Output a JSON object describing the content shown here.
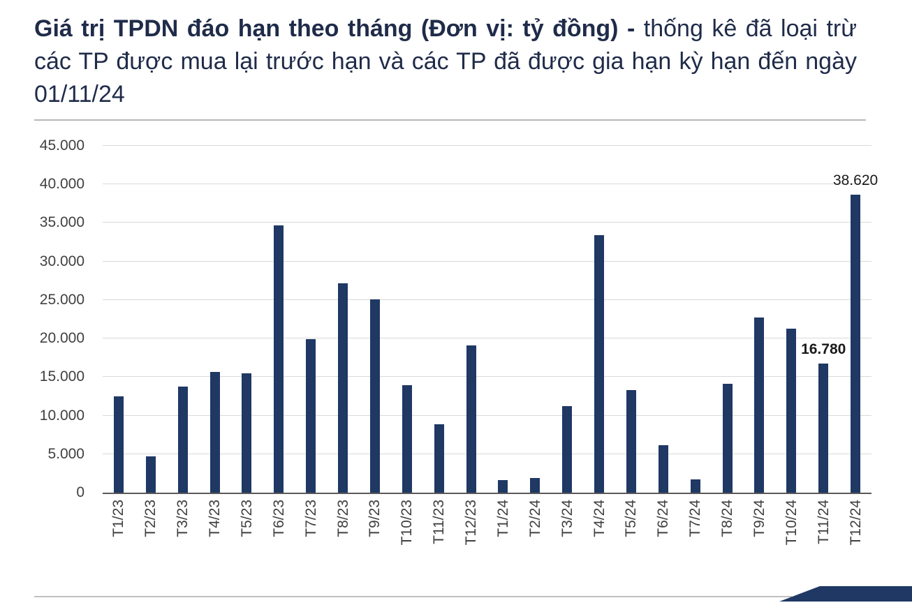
{
  "title": {
    "bold": "Giá trị TPDN đáo hạn theo tháng (Đơn vị: tỷ đồng) - ",
    "regular": "thống kê đã loại trừ các TP được mua lại trước hạn và các TP đã được gia hạn kỳ hạn đến ngày 01/11/24"
  },
  "chart_data": {
    "type": "bar",
    "title": "Giá trị TPDN đáo hạn theo tháng (Đơn vị: tỷ đồng) - thống kê đã loại trừ các TP được mua lại trước hạn và các TP đã được gia hạn kỳ hạn đến ngày 01/11/24",
    "unit": "tỷ đồng",
    "categories": [
      "T1/23",
      "T2/23",
      "T3/23",
      "T4/23",
      "T5/23",
      "T6/23",
      "T7/23",
      "T8/23",
      "T9/23",
      "T10/23",
      "T11/23",
      "T12/23",
      "T1/24",
      "T2/24",
      "T3/24",
      "T4/24",
      "T5/24",
      "T6/24",
      "T7/24",
      "T8/24",
      "T9/24",
      "T10/24",
      "T11/24",
      "T12/24"
    ],
    "values": [
      12500,
      4700,
      13800,
      15700,
      15500,
      34700,
      19900,
      27200,
      25100,
      13900,
      8900,
      19100,
      1600,
      1900,
      11200,
      33400,
      13300,
      6200,
      1700,
      14100,
      22700,
      21300,
      16780,
      38620
    ],
    "data_labels": [
      {
        "category": "T11/24",
        "text": "16.780",
        "bold": true
      },
      {
        "category": "T12/24",
        "text": "38.620",
        "bold": false
      }
    ],
    "ylim": [
      0,
      45000
    ],
    "ytick_step": 5000,
    "yticks": [
      {
        "value": 45000,
        "label": "45.000"
      },
      {
        "value": 40000,
        "label": "40.000"
      },
      {
        "value": 35000,
        "label": "35.000"
      },
      {
        "value": 30000,
        "label": "30.000"
      },
      {
        "value": 25000,
        "label": "25.000"
      },
      {
        "value": 20000,
        "label": "20.000"
      },
      {
        "value": 15000,
        "label": "15.000"
      },
      {
        "value": 10000,
        "label": "10.000"
      },
      {
        "value": 5000,
        "label": "5.000"
      },
      {
        "value": 0,
        "label": "0"
      }
    ],
    "bar_color": "#1f3864",
    "grid": true,
    "legend": "none",
    "xlabel": "",
    "ylabel": ""
  }
}
